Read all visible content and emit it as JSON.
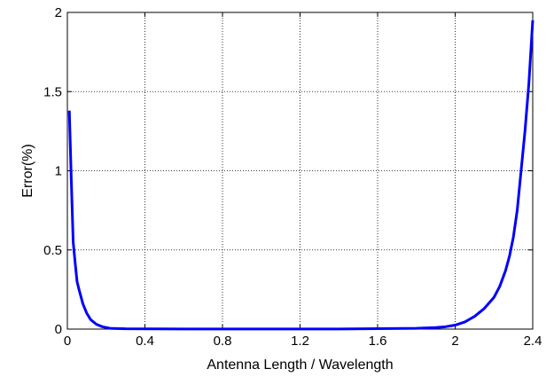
{
  "chart_data": {
    "type": "line",
    "title": "",
    "xlabel": "Antenna Length / Wavelength",
    "ylabel": "Error(%)",
    "xlim": [
      0,
      2.4
    ],
    "ylim": [
      0,
      2
    ],
    "xticks": [
      0,
      0.4,
      0.8,
      1.2,
      1.6,
      2,
      2.4
    ],
    "xtick_labels": [
      "0",
      "0.4",
      "0.8",
      "1.2",
      "1.6",
      "2",
      "2.4"
    ],
    "yticks": [
      0,
      0.5,
      1,
      1.5,
      2
    ],
    "ytick_labels": [
      "0",
      "0.5",
      "1",
      "1.5",
      "2"
    ],
    "grid": true,
    "series": [
      {
        "color": "#0000ff",
        "x": [
          0.01,
          0.02,
          0.03,
          0.04,
          0.05,
          0.06,
          0.08,
          0.1,
          0.12,
          0.15,
          0.18,
          0.22,
          0.3,
          0.6,
          1.0,
          1.4,
          1.8,
          1.9,
          1.95,
          2.0,
          2.05,
          2.1,
          2.15,
          2.2,
          2.23,
          2.26,
          2.28,
          2.3,
          2.32,
          2.34,
          2.36,
          2.38,
          2.4
        ],
        "y": [
          1.38,
          0.95,
          0.55,
          0.42,
          0.3,
          0.25,
          0.16,
          0.1,
          0.06,
          0.03,
          0.015,
          0.005,
          0.002,
          0.001,
          0.001,
          0.001,
          0.005,
          0.01,
          0.015,
          0.025,
          0.045,
          0.08,
          0.13,
          0.2,
          0.27,
          0.37,
          0.46,
          0.58,
          0.75,
          1.0,
          1.25,
          1.55,
          1.95
        ]
      }
    ]
  }
}
